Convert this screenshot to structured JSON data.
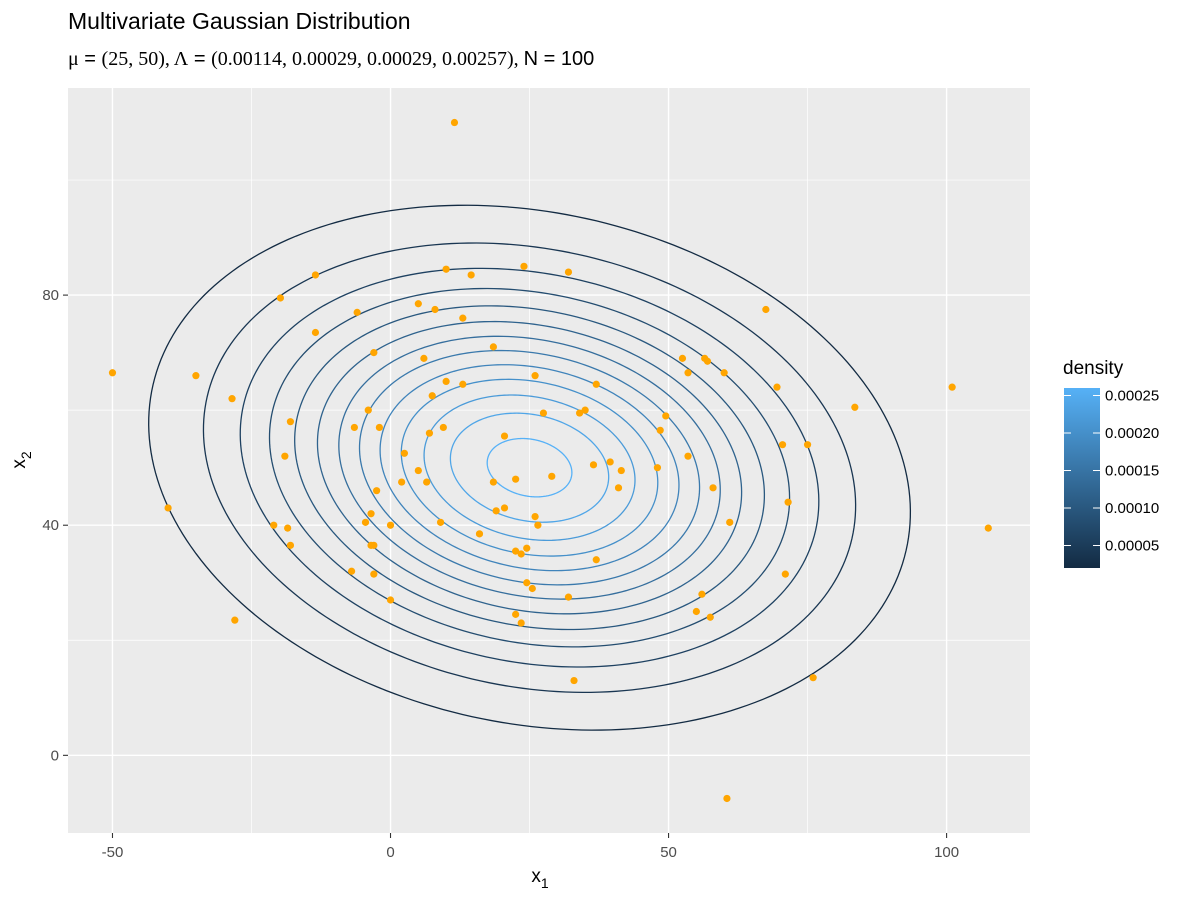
{
  "chart_data": {
    "type": "scatter",
    "title": "Multivariate Gaussian Distribution",
    "subtitle": {
      "mu_symbol": "μ",
      "mu_value": "(25, 50)",
      "lambda_symbol": "Λ",
      "lambda_value": "(0.00114, 0.00029, 0.00029, 0.00257)",
      "n_label": "N",
      "n_value": "100",
      "equals": " = ",
      "sep": ", "
    },
    "xlabel": "x",
    "xlabel_sub": "1",
    "ylabel": "x",
    "ylabel_sub": "2",
    "xlim": [
      -58,
      115
    ],
    "ylim": [
      -13.5,
      116
    ],
    "x_ticks": [
      -50,
      0,
      50,
      100
    ],
    "y_ticks": [
      0,
      40,
      80
    ],
    "x_tick_labels": [
      "-50",
      "0",
      "50",
      "100"
    ],
    "y_tick_labels": [
      "0",
      "40",
      "80"
    ],
    "grid": true,
    "background": "#ebebeb",
    "point_color": "#ffa500",
    "contour": {
      "mean": [
        25,
        50
      ],
      "precision": [
        [
          0.00114,
          0.00029
        ],
        [
          0.00029,
          0.00257
        ]
      ],
      "levels": [
        2e-05,
        4e-05,
        6e-05,
        8e-05,
        0.0001,
        0.00012,
        0.00014,
        0.00016,
        0.00018,
        0.0002,
        0.00022,
        0.00024,
        0.00026
      ],
      "color_low": "#132b43",
      "color_high": "#56b1f7"
    },
    "legend": {
      "title": "density",
      "position": "right",
      "range": [
        2e-05,
        0.00026
      ],
      "ticks": [
        5e-05,
        0.0001,
        0.00015,
        0.0002,
        0.00025
      ],
      "tick_labels": [
        "0.00005",
        "0.00010",
        "0.00015",
        "0.00020",
        "0.00025"
      ]
    },
    "points": [
      [
        11.5,
        110
      ],
      [
        -50,
        66.5
      ],
      [
        -35,
        66
      ],
      [
        -28.5,
        62
      ],
      [
        -40,
        43
      ],
      [
        -28,
        23.5
      ],
      [
        -19.8,
        79.5
      ],
      [
        -13.5,
        83.5
      ],
      [
        -13.5,
        73.5
      ],
      [
        -18,
        58
      ],
      [
        -19,
        52
      ],
      [
        -21,
        40
      ],
      [
        -18.5,
        39.5
      ],
      [
        -18,
        36.5
      ],
      [
        -6,
        77
      ],
      [
        -3,
        70
      ],
      [
        -6.5,
        57
      ],
      [
        -4,
        60
      ],
      [
        -2,
        57
      ],
      [
        -2.5,
        46
      ],
      [
        -4.5,
        40.5
      ],
      [
        -3.5,
        42
      ],
      [
        -3,
        36.5
      ],
      [
        -3.5,
        36.5
      ],
      [
        -7,
        32
      ],
      [
        -3,
        31.5
      ],
      [
        0,
        40
      ],
      [
        0,
        27
      ],
      [
        2,
        47.5
      ],
      [
        2.5,
        52.5
      ],
      [
        5,
        78.5
      ],
      [
        10,
        84.5
      ],
      [
        14.5,
        83.5
      ],
      [
        24,
        85
      ],
      [
        32,
        84
      ],
      [
        8,
        77.5
      ],
      [
        13,
        76
      ],
      [
        6,
        69
      ],
      [
        18.5,
        71
      ],
      [
        7.5,
        62.5
      ],
      [
        10,
        65
      ],
      [
        13,
        64.5
      ],
      [
        5,
        49.5
      ],
      [
        6.5,
        47.5
      ],
      [
        7,
        56
      ],
      [
        9.5,
        57
      ],
      [
        9,
        40.5
      ],
      [
        16,
        38.5
      ],
      [
        18.5,
        47.5
      ],
      [
        19,
        42.5
      ],
      [
        20.5,
        55.5
      ],
      [
        20.5,
        43
      ],
      [
        22.5,
        48
      ],
      [
        22.5,
        35.5
      ],
      [
        23.5,
        35
      ],
      [
        24.5,
        36
      ],
      [
        24.5,
        30
      ],
      [
        25.5,
        29
      ],
      [
        22.5,
        24.5
      ],
      [
        23.5,
        23
      ],
      [
        26,
        66
      ],
      [
        26,
        41.5
      ],
      [
        26.5,
        40
      ],
      [
        27.5,
        59.5
      ],
      [
        29,
        48.5
      ],
      [
        32,
        27.5
      ],
      [
        33,
        13
      ],
      [
        34,
        59.5
      ],
      [
        35,
        60
      ],
      [
        36.5,
        50.5
      ],
      [
        37,
        64.5
      ],
      [
        37,
        34
      ],
      [
        39.5,
        51
      ],
      [
        41,
        46.5
      ],
      [
        41.5,
        49.5
      ],
      [
        48,
        50
      ],
      [
        48.5,
        56.5
      ],
      [
        49.5,
        59
      ],
      [
        52.5,
        69
      ],
      [
        53.5,
        66.5
      ],
      [
        53.5,
        52
      ],
      [
        55,
        25
      ],
      [
        56,
        28
      ],
      [
        57,
        68.5
      ],
      [
        56.5,
        69
      ],
      [
        57.5,
        24
      ],
      [
        58,
        46.5
      ],
      [
        60,
        66.5
      ],
      [
        61,
        40.5
      ],
      [
        60.5,
        -7.5
      ],
      [
        67.5,
        77.5
      ],
      [
        69.5,
        64
      ],
      [
        70.5,
        54
      ],
      [
        71.5,
        44
      ],
      [
        71,
        31.5
      ],
      [
        75,
        54
      ],
      [
        76,
        13.5
      ],
      [
        83.5,
        60.5
      ],
      [
        101,
        64
      ],
      [
        107.5,
        39.5
      ]
    ]
  }
}
